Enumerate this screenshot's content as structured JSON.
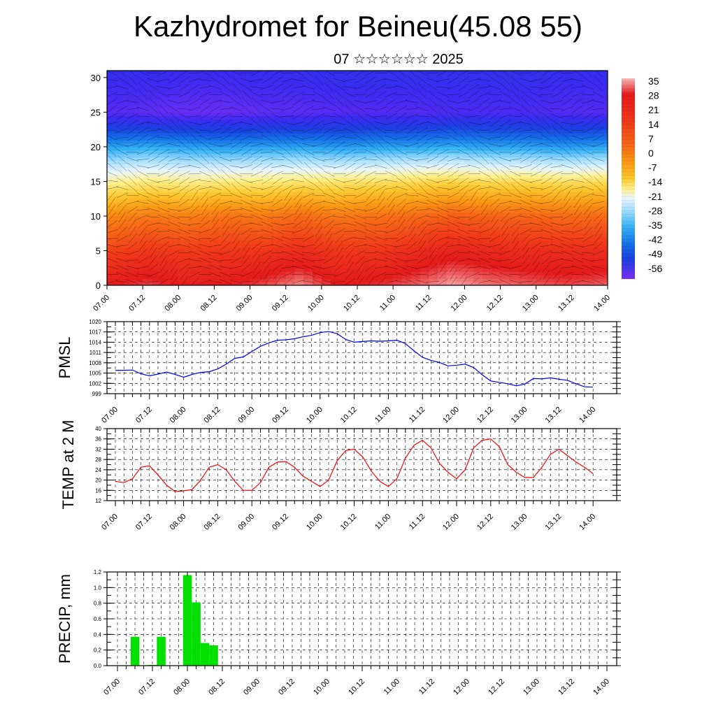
{
  "page": {
    "title": "Kazhydromet for Beineu(45.08 55)",
    "subtitle": "07 ☆☆☆☆☆☆ 2025"
  },
  "time_ticks": [
    "07.00",
    "07.12",
    "08.00",
    "08.12",
    "09.00",
    "09.12",
    "10.00",
    "10.12",
    "11.00",
    "11.12",
    "12.00",
    "12.12",
    "13.00",
    "13.12",
    "14.00"
  ],
  "chart_data": [
    {
      "type": "heatmap",
      "name": "temperature-cross-section",
      "xlabel": "",
      "ylabel": "",
      "x_ticks": [
        "07.00",
        "07.12",
        "08.00",
        "08.12",
        "09.00",
        "09.12",
        "10.00",
        "10.12",
        "11.00",
        "11.12",
        "12.00",
        "12.12",
        "13.00",
        "13.12",
        "14.00"
      ],
      "y_ticks": [
        0,
        5,
        10,
        15,
        20,
        25,
        30
      ],
      "ylim": [
        0,
        31
      ],
      "colorbar": {
        "labels": [
          "35",
          "28",
          "21",
          "14",
          "7",
          "0",
          "-7",
          "-14",
          "-21",
          "-28",
          "-35",
          "-42",
          "-49",
          "-56"
        ],
        "colors": [
          "#f7b8b8",
          "#e41a1c",
          "#f03a1a",
          "#f56a16",
          "#f99a14",
          "#fcc830",
          "#fff08a",
          "#e7f5ff",
          "#9fdcff",
          "#37b3f5",
          "#1674e8",
          "#1a3fe0",
          "#3b2af0",
          "#7a2ef2"
        ]
      },
      "series": [
        {
          "values_by_level": [
            {
              "level": 0,
              "profile": [
                28,
                30,
                27,
                28,
                30,
                33,
                28,
                29,
                31,
                34,
                32,
                31,
                30,
                31
              ]
            },
            {
              "level": 5,
              "profile": [
                20,
                22,
                21,
                22,
                22,
                24,
                22,
                22,
                24,
                26,
                25,
                24,
                24,
                24
              ]
            },
            {
              "level": 10,
              "profile": [
                10,
                12,
                11,
                13,
                12,
                14,
                12,
                13,
                14,
                16,
                15,
                15,
                14,
                14
              ]
            },
            {
              "level": 15,
              "profile": [
                -8,
                -6,
                -7,
                -6,
                -6,
                -5,
                -5,
                -4,
                -3,
                -2,
                -3,
                -3,
                -4,
                -3
              ]
            },
            {
              "level": 20,
              "profile": [
                -30,
                -29,
                -30,
                -31,
                -30,
                -30,
                -31,
                -30,
                -30,
                -29,
                -30,
                -30,
                -31,
                -30
              ]
            },
            {
              "level": 25,
              "profile": [
                -52,
                -53,
                -54,
                -54,
                -53,
                -53,
                -52,
                -52,
                -52,
                -51,
                -51,
                -51,
                -52,
                -52
              ]
            },
            {
              "level": 30,
              "profile": [
                -48,
                -48,
                -49,
                -49,
                -48,
                -48,
                -47,
                -47,
                -47,
                -47,
                -47,
                -47,
                -48,
                -48
              ]
            }
          ]
        }
      ]
    },
    {
      "type": "line",
      "name": "pmsl",
      "ylabel": "PMSL",
      "y_ticks": [
        999,
        1002,
        1005,
        1008,
        1011,
        1014,
        1017,
        1020
      ],
      "ylim": [
        999,
        1020
      ],
      "x_ticks": [
        "07.00",
        "07.12",
        "08.00",
        "08.12",
        "09.00",
        "09.12",
        "10.00",
        "10.12",
        "11.00",
        "11.12",
        "12.00",
        "12.12",
        "13.00",
        "13.12",
        "14.00"
      ],
      "x_step_hours": 3,
      "line_color": "#0000ff",
      "values": [
        1005.8,
        1005.8,
        1005.9,
        1004.8,
        1004.2,
        1004.7,
        1005.3,
        1004.6,
        1003.8,
        1004.6,
        1005.2,
        1005.4,
        1006.2,
        1007.6,
        1009.3,
        1009.7,
        1011.3,
        1012.8,
        1013.8,
        1014.6,
        1014.7,
        1015.0,
        1015.6,
        1016.0,
        1016.8,
        1017.1,
        1016.5,
        1014.8,
        1014.0,
        1014.2,
        1014.4,
        1014.3,
        1014.4,
        1014.6,
        1013.6,
        1011.5,
        1009.6,
        1008.7,
        1008.1,
        1007.1,
        1007.3,
        1007.6,
        1006.6,
        1004.5,
        1002.7,
        1002.3,
        1001.9,
        1001.3,
        1001.8,
        1003.4,
        1003.3,
        1003.6,
        1003.2,
        1002.9,
        1001.9,
        1001.0,
        1000.9
      ]
    },
    {
      "type": "line",
      "name": "temp-2m",
      "ylabel": "TEMP at 2 M",
      "y_ticks": [
        12,
        16,
        20,
        24,
        28,
        32,
        36,
        40
      ],
      "ylim": [
        12,
        40
      ],
      "x_ticks": [
        "07.00",
        "07.12",
        "08.00",
        "08.12",
        "09.00",
        "09.12",
        "10.00",
        "10.12",
        "11.00",
        "11.12",
        "12.00",
        "12.12",
        "13.00",
        "13.12",
        "14.00"
      ],
      "x_step_hours": 3,
      "line_color": "#ff0000",
      "values": [
        19.5,
        19.0,
        20.5,
        25.0,
        25.5,
        22.0,
        18.0,
        15.5,
        15.8,
        16.3,
        20.0,
        25.0,
        26.0,
        24.0,
        19.5,
        16.0,
        16.0,
        19.0,
        25.0,
        27.0,
        27.2,
        25.0,
        21.5,
        19.5,
        17.5,
        20.0,
        27.5,
        31.5,
        32.0,
        29.0,
        23.5,
        19.5,
        17.5,
        20.5,
        28.5,
        33.5,
        35.5,
        32.5,
        26.5,
        23.0,
        20.5,
        24.0,
        32.5,
        35.5,
        36.0,
        33.0,
        26.0,
        23.0,
        21.0,
        21.0,
        25.0,
        30.0,
        32.0,
        29.5,
        27.0,
        25.0,
        22.5
      ]
    },
    {
      "type": "bar",
      "name": "precip",
      "ylabel": "PRECIP, mm",
      "y_ticks": [
        "0.0",
        "0.2",
        "0.4",
        "0.6",
        "0.8",
        "1.0",
        "1.2"
      ],
      "ylim": [
        0,
        1.2
      ],
      "x_ticks": [
        "07.00",
        "07.12",
        "08.00",
        "08.12",
        "09.00",
        "09.12",
        "10.00",
        "10.12",
        "11.00",
        "11.12",
        "12.00",
        "12.12",
        "13.00",
        "13.12",
        "14.00"
      ],
      "x_step_hours": 3,
      "bar_color": "#00e000",
      "values": [
        0,
        0,
        0.37,
        0,
        0.01,
        0.37,
        0,
        0,
        1.16,
        0.81,
        0.29,
        0.26,
        0,
        0,
        0,
        0,
        0,
        0,
        0,
        0,
        0,
        0,
        0,
        0,
        0,
        0,
        0,
        0,
        0,
        0,
        0,
        0,
        0,
        0,
        0,
        0,
        0,
        0,
        0,
        0,
        0,
        0,
        0,
        0,
        0,
        0,
        0,
        0,
        0,
        0,
        0,
        0,
        0,
        0,
        0,
        0,
        0
      ]
    }
  ]
}
